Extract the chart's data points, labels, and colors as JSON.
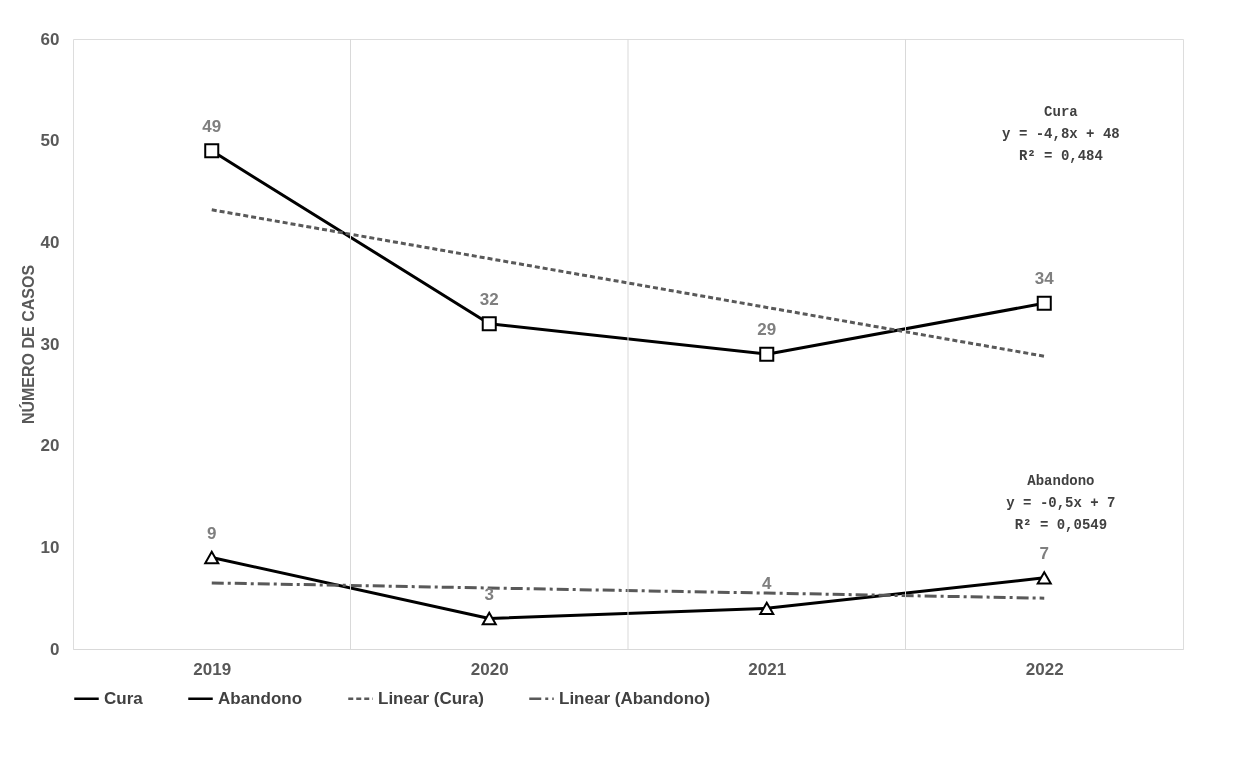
{
  "chart_data": {
    "type": "line",
    "ylabel": "NÚMERO DE CASOS",
    "categories": [
      "2019",
      "2020",
      "2021",
      "2022"
    ],
    "ylim": [
      0,
      60
    ],
    "yticks": [
      0,
      10,
      20,
      30,
      40,
      50,
      60
    ],
    "grid": "x",
    "legend": "bottom",
    "series": [
      {
        "name": "Cura",
        "color": "#000000",
        "values": [
          49,
          32,
          29,
          34
        ],
        "marker": "square",
        "line_style": "solid",
        "value_labels": [
          "49",
          "32",
          "29",
          "34"
        ]
      },
      {
        "name": "Abandono",
        "color": "#000000",
        "values": [
          9,
          3,
          4,
          7
        ],
        "marker": "triangle",
        "line_style": "solid",
        "value_labels": [
          "9",
          "3",
          "4",
          "7"
        ]
      },
      {
        "name": "Linear (Cura)",
        "color": "#595959",
        "values": [
          43.2,
          38.4,
          33.6,
          28.8
        ],
        "marker": "none",
        "line_style": "dashed"
      },
      {
        "name": "Linear (Abandono)",
        "color": "#595959",
        "values": [
          6.5,
          6.0,
          5.5,
          5.0
        ],
        "marker": "none",
        "line_style": "dashdot"
      }
    ],
    "annotations": [
      "Cura\ny = -4,8x + 48\nR² = 0,484",
      "Abandono\ny = -0,5x + 7\nR² = 0,0549"
    ]
  }
}
